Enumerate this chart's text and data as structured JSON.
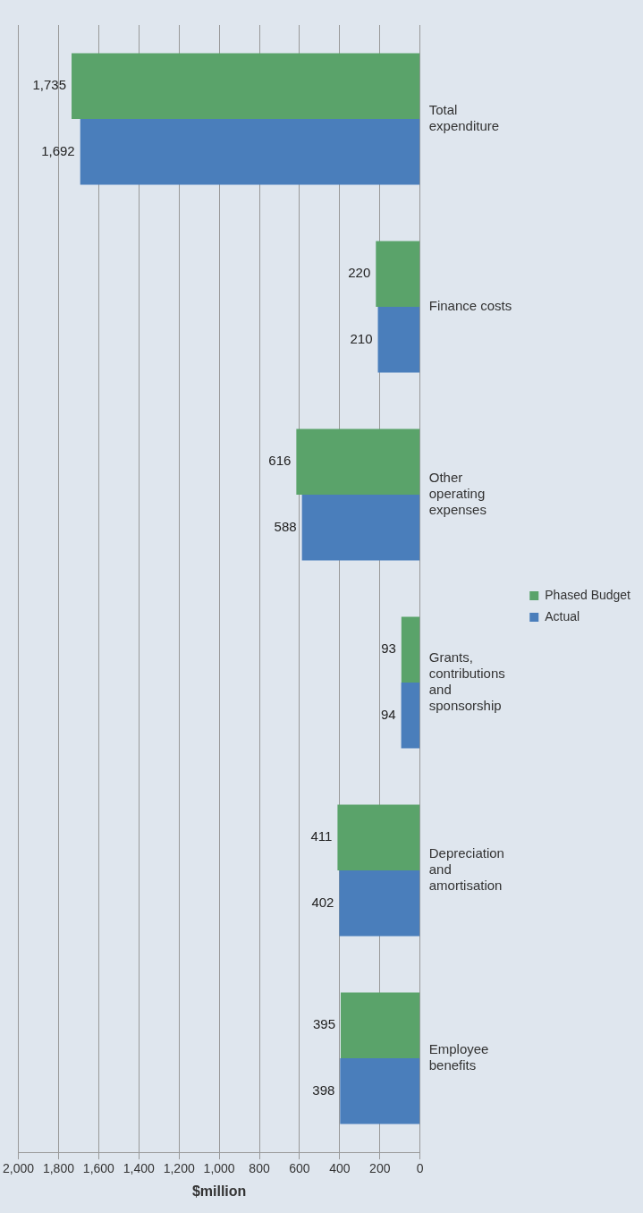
{
  "chart_data": {
    "type": "bar",
    "orientation": "horizontal",
    "xlabel": "$million",
    "categories": [
      "Total expenditure",
      "Finance costs",
      "Other operating expenses",
      "Grants, contributions and sponsorship",
      "Depreciation and amortisation",
      "Employee benefits"
    ],
    "series": [
      {
        "name": "Phased Budget",
        "color": "#5aa36a",
        "values": [
          1735,
          220,
          616,
          93,
          411,
          395
        ],
        "value_labels": [
          "1,735",
          "220",
          "616",
          "93",
          "411",
          "395"
        ]
      },
      {
        "name": "Actual",
        "color": "#4a7ebb",
        "values": [
          1692,
          210,
          588,
          94,
          402,
          398
        ],
        "value_labels": [
          "1,692",
          "210",
          "588",
          "94",
          "402",
          "398"
        ]
      }
    ],
    "xlim": [
      2000,
      0
    ],
    "xticks": [
      {
        "value": 2000,
        "label": "2,000"
      },
      {
        "value": 1800,
        "label": "1,800"
      },
      {
        "value": 1600,
        "label": "1,600"
      },
      {
        "value": 1400,
        "label": "1,400"
      },
      {
        "value": 1200,
        "label": "1,200"
      },
      {
        "value": 1000,
        "label": "1,000"
      },
      800,
      600,
      400,
      200,
      0
    ],
    "grid": "x",
    "legend": "right"
  }
}
